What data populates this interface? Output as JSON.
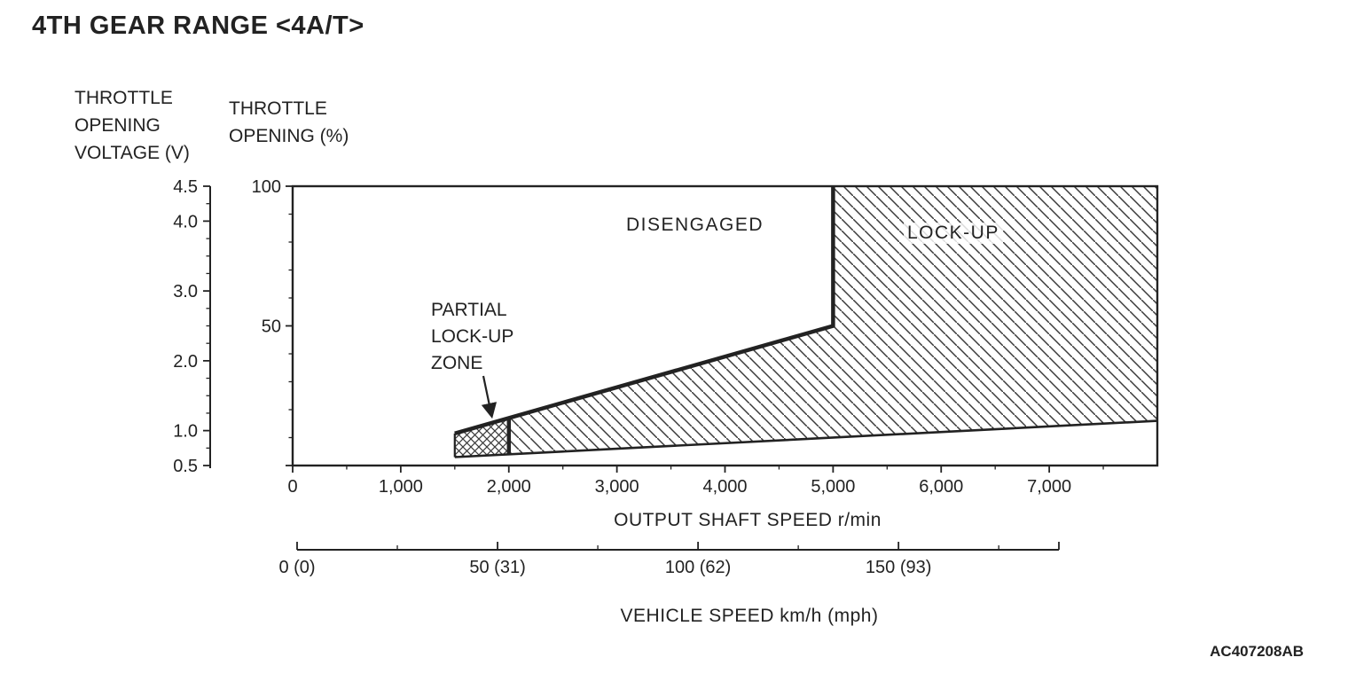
{
  "header": {
    "title": "4TH GEAR RANGE <4A/T>"
  },
  "footer": {
    "doc_code": "AC407208AB"
  },
  "chart_data": {
    "type": "area",
    "title": "4TH GEAR RANGE <4A/T>",
    "axes": {
      "x_rpm": {
        "label": "OUTPUT SHAFT SPEED r/min",
        "range": [
          0,
          8000
        ],
        "major_ticks": [
          0,
          1000,
          2000,
          3000,
          4000,
          5000,
          6000,
          7000
        ],
        "tick_labels": [
          "0",
          "1,000",
          "2,000",
          "3,000",
          "4,000",
          "5,000",
          "6,000",
          "7,000"
        ],
        "minor_step": 500
      },
      "y_percent": {
        "label": "THROTTLE OPENING (%)",
        "label_multiline": "THROTTLE\nOPENING (%)",
        "range": [
          0,
          100
        ],
        "major_ticks": [
          0,
          50,
          100
        ],
        "tick_labels": [
          "",
          "50",
          "100"
        ],
        "minor_step": 10
      },
      "y_voltage": {
        "label": "THROTTLE OPENING VOLTAGE (V)",
        "label_multiline": "THROTTLE\nOPENING\nVOLTAGE (V)",
        "range": [
          0.5,
          4.5
        ],
        "major_ticks": [
          0.5,
          1.0,
          2.0,
          3.0,
          4.0,
          4.5
        ],
        "tick_labels": [
          "0.5",
          "1.0",
          "2.0",
          "3.0",
          "4.0",
          "4.5"
        ],
        "minor_step": 0.25
      },
      "x_vehicle": {
        "label": "VEHICLE SPEED km/h (mph)",
        "range": [
          0,
          190
        ],
        "major_ticks": [
          0,
          50,
          100,
          150
        ],
        "tick_labels": [
          "0 (0)",
          "50 (31)",
          "100 (62)",
          "150 (93)"
        ],
        "minor_step": 25
      }
    },
    "regions_text": {
      "disengaged": "DISENGAGED",
      "lockup": "LOCK-UP",
      "partial_multiline": "PARTIAL\nLOCK-UP\nZONE"
    },
    "geometry": {
      "lockup_polygon_rpm_pct": [
        [
          2000,
          4.0
        ],
        [
          8000,
          16
        ],
        [
          8000,
          100
        ],
        [
          5000,
          100
        ],
        [
          5000,
          50
        ],
        [
          2000,
          17
        ]
      ],
      "partial_polygon_rpm_pct": [
        [
          1500,
          3.0
        ],
        [
          2000,
          4.0
        ],
        [
          2000,
          17
        ],
        [
          1500,
          11.5
        ]
      ],
      "boundary_lines": [
        {
          "name": "lockup-engage-boundary",
          "points": [
            [
              1500,
              11.5
            ],
            [
              2000,
              17
            ],
            [
              5000,
              50
            ],
            [
              5000,
              100
            ]
          ],
          "width": 4.5
        },
        {
          "name": "partial-zone-right-edge",
          "points": [
            [
              2000,
              4.0
            ],
            [
              2000,
              17
            ]
          ],
          "width": 4.5
        },
        {
          "name": "lockup-release-boundary",
          "points": [
            [
              1500,
              3.0
            ],
            [
              8000,
              16
            ]
          ],
          "width": 2.6
        },
        {
          "name": "partial-zone-left-edge",
          "points": [
            [
              1500,
              3.0
            ],
            [
              1500,
              11.5
            ]
          ],
          "width": 2.2
        }
      ]
    },
    "colors": {
      "ink": "#222222",
      "hatch": "#3a3a3a",
      "background": "#ffffff"
    }
  }
}
